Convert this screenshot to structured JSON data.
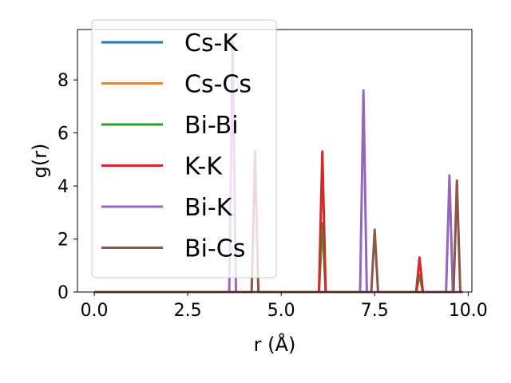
{
  "chart_data": {
    "type": "line",
    "xlabel": "r (Å)",
    "ylabel": "g(r)",
    "xlim": [
      -0.45,
      10.1
    ],
    "ylim": [
      0,
      9.9
    ],
    "xticks": [
      "0.0",
      "2.5",
      "5.0",
      "7.5",
      "10.0"
    ],
    "xtick_values": [
      0,
      2.5,
      5,
      7.5,
      10
    ],
    "yticks": [
      "0",
      "2",
      "4",
      "6",
      "8"
    ],
    "ytick_values": [
      0,
      2,
      4,
      6,
      8
    ],
    "grid": false,
    "legend_position": "upper-left",
    "series": [
      {
        "name": "Cs-K",
        "color": "#1f77b4",
        "peaks": []
      },
      {
        "name": "Cs-Cs",
        "color": "#ff7f0e",
        "peaks": []
      },
      {
        "name": "Bi-Bi",
        "color": "#2ca02c",
        "peaks": [
          [
            6.1,
            2.6
          ],
          [
            8.7,
            0.65
          ]
        ]
      },
      {
        "name": "K-K",
        "color": "#d62728",
        "peaks": [
          [
            6.1,
            5.3
          ],
          [
            8.7,
            1.3
          ]
        ]
      },
      {
        "name": "Bi-K",
        "color": "#9467bd",
        "peaks": [
          [
            3.7,
            9.4
          ],
          [
            7.2,
            7.6
          ],
          [
            9.5,
            4.4
          ]
        ]
      },
      {
        "name": "Bi-Cs",
        "color": "#8c564b",
        "peaks": [
          [
            4.3,
            5.3
          ],
          [
            7.5,
            2.35
          ],
          [
            9.7,
            4.2
          ]
        ]
      }
    ]
  }
}
